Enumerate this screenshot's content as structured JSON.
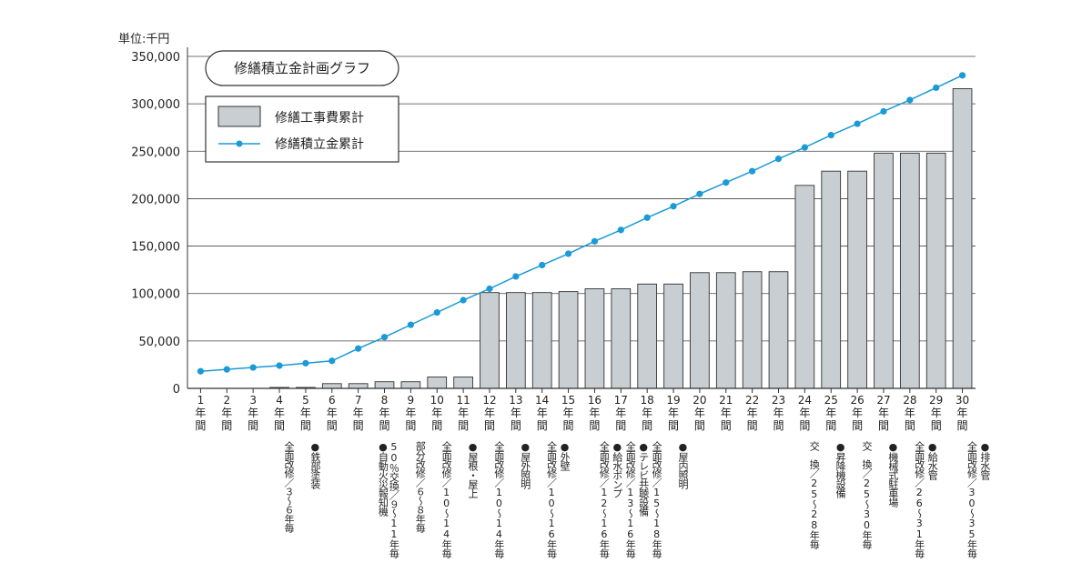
{
  "chart_data": {
    "type": "bar",
    "title": "修繕積立金計画グラフ",
    "unit_label": "単位:千円",
    "ylim": [
      0,
      350000
    ],
    "y_ticks": [
      "0",
      "50,000",
      "100,000",
      "150,000",
      "200,000",
      "250,000",
      "300,000",
      "350,000"
    ],
    "grid": true,
    "legend_position": "top-left",
    "categories": [
      "1年間",
      "2年間",
      "3年間",
      "4年間",
      "5年間",
      "6年間",
      "7年間",
      "8年間",
      "9年間",
      "10年間",
      "11年間",
      "12年間",
      "13年間",
      "14年間",
      "15年間",
      "16年間",
      "17年間",
      "18年間",
      "19年間",
      "20年間",
      "21年間",
      "22年間",
      "23年間",
      "24年間",
      "25年間",
      "26年間",
      "27年間",
      "28年間",
      "29年間",
      "30年間"
    ],
    "year_labels": [
      [
        "1",
        "年",
        "間"
      ],
      [
        "2",
        "年",
        "間"
      ],
      [
        "3",
        "年",
        "間"
      ],
      [
        "4",
        "年",
        "間"
      ],
      [
        "5",
        "年",
        "間"
      ],
      [
        "6",
        "年",
        "間"
      ],
      [
        "7",
        "年",
        "間"
      ],
      [
        "8",
        "年",
        "間"
      ],
      [
        "9",
        "年",
        "間"
      ],
      [
        "10",
        "年",
        "間"
      ],
      [
        "11",
        "年",
        "間"
      ],
      [
        "12",
        "年",
        "間"
      ],
      [
        "13",
        "年",
        "間"
      ],
      [
        "14",
        "年",
        "間"
      ],
      [
        "15",
        "年",
        "間"
      ],
      [
        "16",
        "年",
        "間"
      ],
      [
        "17",
        "年",
        "間"
      ],
      [
        "18",
        "年",
        "間"
      ],
      [
        "19",
        "年",
        "間"
      ],
      [
        "20",
        "年",
        "間"
      ],
      [
        "21",
        "年",
        "間"
      ],
      [
        "22",
        "年",
        "間"
      ],
      [
        "23",
        "年",
        "間"
      ],
      [
        "24",
        "年",
        "間"
      ],
      [
        "25",
        "年",
        "間"
      ],
      [
        "26",
        "年",
        "間"
      ],
      [
        "27",
        "年",
        "間"
      ],
      [
        "28",
        "年",
        "間"
      ],
      [
        "29",
        "年",
        "間"
      ],
      [
        "30",
        "年",
        "間"
      ]
    ],
    "series": [
      {
        "name": "修繕工事費累計",
        "kind": "bar",
        "color": "#c8ced2",
        "values": [
          0,
          0,
          0,
          1000,
          1000,
          5000,
          5000,
          7000,
          7000,
          12000,
          12000,
          101000,
          101000,
          101000,
          102000,
          105000,
          105000,
          110000,
          110000,
          122000,
          122000,
          123000,
          123000,
          214000,
          229000,
          229000,
          248000,
          248000,
          248000,
          316000
        ]
      },
      {
        "name": "修繕積立金累計",
        "kind": "line",
        "color": "#1a9ad6",
        "values": [
          18000,
          20000,
          22000,
          24000,
          26500,
          29000,
          42000,
          54000,
          67000,
          80000,
          93000,
          105000,
          118000,
          130000,
          142000,
          155000,
          167000,
          180000,
          192000,
          205000,
          217000,
          229000,
          242000,
          254000,
          267000,
          279000,
          292000,
          304000,
          317000,
          330000
        ]
      }
    ],
    "annotations": [
      {
        "after": 4,
        "lines": [
          "全面改修／３～６年毎"
        ]
      },
      {
        "after": 5,
        "lines": [
          "●鉄部塗装"
        ]
      },
      {
        "after": 8,
        "lines": [
          "50％交換／９～11年毎",
          "●自動火災報知機"
        ]
      },
      {
        "after": 9,
        "lines": [
          "部分改修／６～８年毎"
        ]
      },
      {
        "after": 10,
        "lines": [
          "全面改修／10～14年毎"
        ]
      },
      {
        "after": 11,
        "lines": [
          "●屋根・屋上"
        ]
      },
      {
        "after": 12,
        "lines": [
          "全面改修／10～14年毎"
        ]
      },
      {
        "after": 13,
        "lines": [
          "●屋外照明"
        ]
      },
      {
        "after": 14,
        "lines": [
          "全面改修／10～16年毎"
        ]
      },
      {
        "after": 14.5,
        "lines": [
          "●外壁"
        ]
      },
      {
        "after": 16,
        "lines": [
          "全面改修／12～16年毎"
        ]
      },
      {
        "after": 16.5,
        "lines": [
          "●給水ポンプ"
        ]
      },
      {
        "after": 17,
        "lines": [
          "全面改修／13～16年毎"
        ]
      },
      {
        "after": 17.5,
        "lines": [
          "●テレビ共聴設備"
        ]
      },
      {
        "after": 18,
        "lines": [
          "全面改修／15～18年毎"
        ]
      },
      {
        "after": 19,
        "lines": [
          "●屋内照明"
        ]
      },
      {
        "after": 24,
        "lines": [
          "交　換／25～28年毎"
        ]
      },
      {
        "after": 25,
        "lines": [
          "●昇降機設備"
        ]
      },
      {
        "after": 26,
        "lines": [
          "交　換／25～30年毎"
        ]
      },
      {
        "after": 27,
        "lines": [
          "●機械式駐車場"
        ]
      },
      {
        "after": 28,
        "lines": [
          "全面改修／26～31年毎"
        ]
      },
      {
        "after": 28.5,
        "lines": [
          "●給水管"
        ]
      },
      {
        "after": 30,
        "lines": [
          "全面改修／30～35年毎"
        ]
      },
      {
        "after": 30.5,
        "lines": [
          "●排水管"
        ]
      }
    ]
  }
}
